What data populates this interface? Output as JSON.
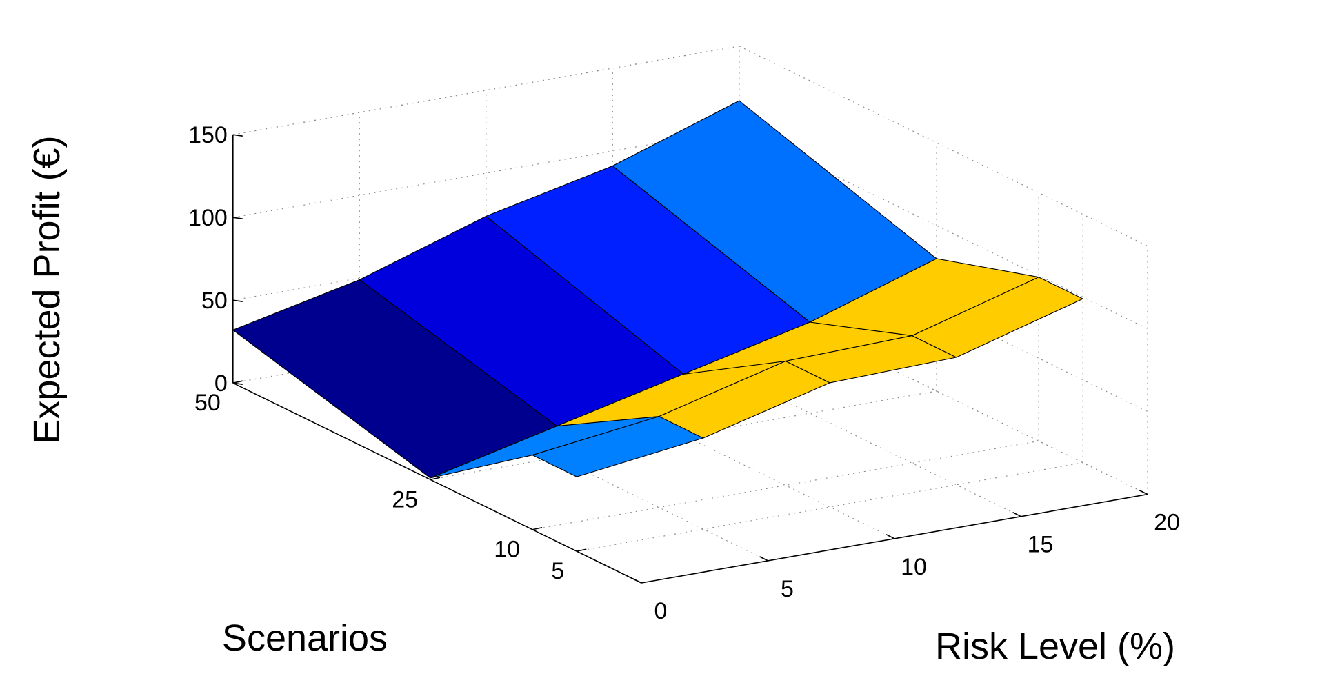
{
  "chart_data": {
    "type": "surface3d",
    "title": "",
    "xlabel": "Scenarios",
    "ylabel": "Risk Level (%)",
    "zlabel": "Expected Profit (€)",
    "scenario_ticks": [
      "5",
      "10",
      "25",
      "50"
    ],
    "scenario_values": [
      5,
      10,
      25,
      50
    ],
    "risk_ticks": [
      "0",
      "5",
      "10",
      "15",
      "20"
    ],
    "risk_values": [
      0,
      5,
      10,
      15,
      20
    ],
    "zlim": [
      0,
      150
    ],
    "z_ticks": [
      0,
      50,
      100,
      150
    ],
    "z_tick_labels": [
      "0",
      "50",
      "100",
      "150"
    ],
    "grid": true,
    "colormap": [
      "#00008F",
      "#0000FF",
      "#0080FF",
      "#00FFFF",
      "#FFCC00"
    ],
    "surface": {
      "scenarios": [
        5,
        10,
        25,
        50
      ],
      "risk": [
        0,
        5,
        10,
        15,
        20
      ],
      "expected_profit": [
        [
          45,
          55,
          75,
          77,
          99
        ],
        [
          45,
          55,
          75,
          77,
          99
        ],
        [
          1,
          19,
          37,
          55,
          80
        ],
        [
          32,
          49,
          74,
          91,
          117
        ]
      ],
      "patch_colors": [
        [
          "#0080FF",
          "#FFCC00",
          "#FFCC00",
          "#FFCC00"
        ],
        [
          "#0080FF",
          "#FFCC00",
          "#FFCC00",
          "#FFCC00"
        ],
        [
          "#00008F",
          "#0000DD",
          "#0020FF",
          "#0070FF"
        ]
      ]
    }
  }
}
